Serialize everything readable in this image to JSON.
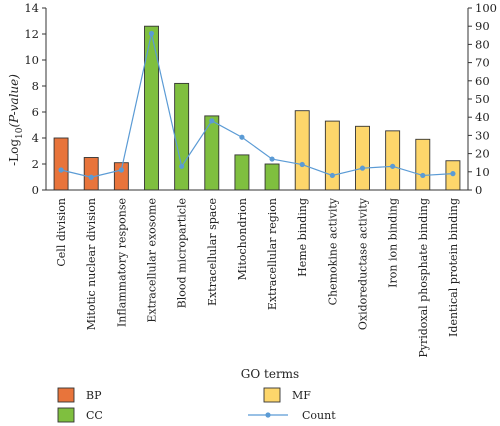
{
  "chart_data": {
    "type": "bar",
    "xlabel": "GO terms",
    "ylabel_left": "-Log",
    "ylabel_left_sub": "10",
    "ylabel_left_paren": "(P-value)",
    "y_left_lim": [
      0,
      14
    ],
    "y_left_ticks": [
      "0",
      "2",
      "4",
      "6",
      "8",
      "10",
      "12",
      "14"
    ],
    "y_right_lim": [
      0,
      100
    ],
    "y_right_ticks": [
      "0",
      "10",
      "20",
      "30",
      "40",
      "50",
      "60",
      "70",
      "80",
      "90",
      "100"
    ],
    "categories": [
      "Cell division",
      "Mitotic nuclear division",
      "Inflammatory response",
      "Extracellular exosome",
      "Blood microparticle",
      "Extracellular space",
      "Mitochondrion",
      "Extracellular region",
      "Heme binding",
      "Chemokine activity",
      "Oxidoreductase activity",
      "Iron ion binding",
      "Pyridoxal phosphate binding",
      "Identical protein binding"
    ],
    "groups": [
      "BP",
      "BP",
      "BP",
      "CC",
      "CC",
      "CC",
      "CC",
      "CC",
      "MF",
      "MF",
      "MF",
      "MF",
      "MF",
      "MF"
    ],
    "bar_values": [
      4.0,
      2.5,
      2.1,
      12.6,
      8.2,
      5.7,
      2.7,
      2.0,
      6.1,
      5.3,
      4.9,
      4.55,
      3.9,
      2.25
    ],
    "count_values": [
      11,
      7,
      11,
      86,
      13,
      38,
      29,
      17,
      14,
      8,
      12,
      13,
      8,
      9
    ],
    "legend": [
      {
        "key": "BP",
        "label": "BP",
        "color": "#e8743b",
        "kind": "box"
      },
      {
        "key": "CC",
        "label": "CC",
        "color": "#7fbf3f",
        "kind": "box"
      },
      {
        "key": "MF",
        "label": "MF",
        "color": "#fdd66b",
        "kind": "box"
      },
      {
        "key": "count",
        "label": "Count",
        "color": "#5b9bd5",
        "kind": "line"
      }
    ],
    "colors": {
      "BP": "#e8743b",
      "CC": "#7fbf3f",
      "MF": "#fdd66b",
      "count": "#5b9bd5"
    }
  }
}
